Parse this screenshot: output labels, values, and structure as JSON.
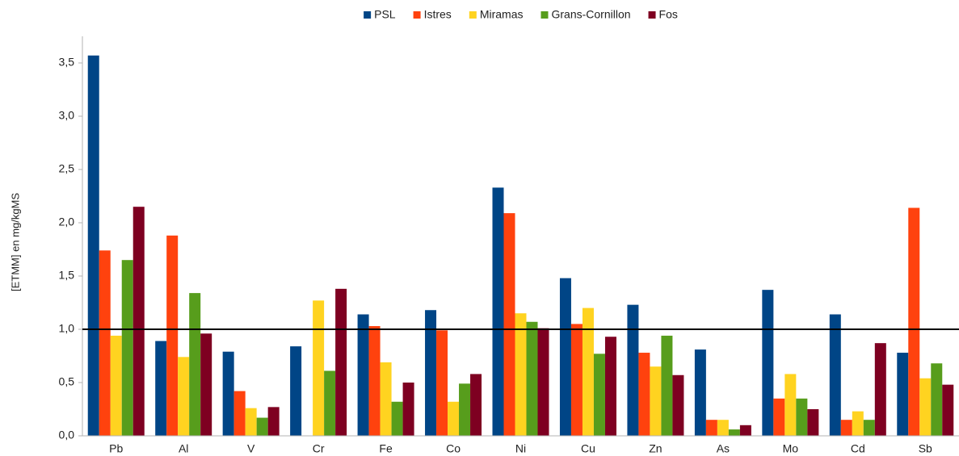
{
  "chart_data": {
    "type": "bar",
    "y_label": "[ETMM] en mg/kgMS",
    "categories": [
      "Pb",
      "Al",
      "V",
      "Cr",
      "Fe",
      "Co",
      "Ni",
      "Cu",
      "Zn",
      "As",
      "Mo",
      "Cd",
      "Sb"
    ],
    "series": [
      {
        "name": "PSL",
        "color": "#004586",
        "values": [
          3.57,
          0.89,
          0.79,
          0.84,
          1.14,
          1.18,
          2.33,
          1.48,
          1.23,
          0.81,
          1.37,
          1.14,
          0.78
        ]
      },
      {
        "name": "Istres",
        "color": "#ff420e",
        "values": [
          1.74,
          1.88,
          0.42,
          null,
          1.03,
          0.99,
          2.09,
          1.05,
          0.78,
          0.15,
          0.35,
          0.15,
          2.14
        ]
      },
      {
        "name": "Miramas",
        "color": "#ffd320",
        "values": [
          0.94,
          0.74,
          0.26,
          1.27,
          0.69,
          0.32,
          1.15,
          1.2,
          0.65,
          0.15,
          0.58,
          0.23,
          0.54
        ]
      },
      {
        "name": "Grans-Cornillon",
        "color": "#579d1c",
        "values": [
          1.65,
          1.34,
          0.17,
          0.61,
          0.32,
          0.49,
          1.07,
          0.77,
          0.94,
          0.06,
          0.35,
          0.15,
          0.68
        ]
      },
      {
        "name": "Fos",
        "color": "#7e0021",
        "values": [
          2.15,
          0.96,
          0.27,
          1.38,
          0.5,
          0.58,
          1.01,
          0.93,
          0.57,
          0.1,
          0.25,
          0.87,
          0.48
        ]
      }
    ],
    "ylim": [
      0,
      3.75
    ],
    "yticks": [
      {
        "value": 0,
        "label": "0,0"
      },
      {
        "value": 0.5,
        "label": "0,5"
      },
      {
        "value": 1,
        "label": "1,0"
      },
      {
        "value": 1.5,
        "label": "1,5"
      },
      {
        "value": 2,
        "label": "2,0"
      },
      {
        "value": 2.5,
        "label": "2,5"
      },
      {
        "value": 3,
        "label": "3,0"
      },
      {
        "value": 3.5,
        "label": "3,5"
      }
    ],
    "reference_line": 1,
    "legend": "top"
  }
}
